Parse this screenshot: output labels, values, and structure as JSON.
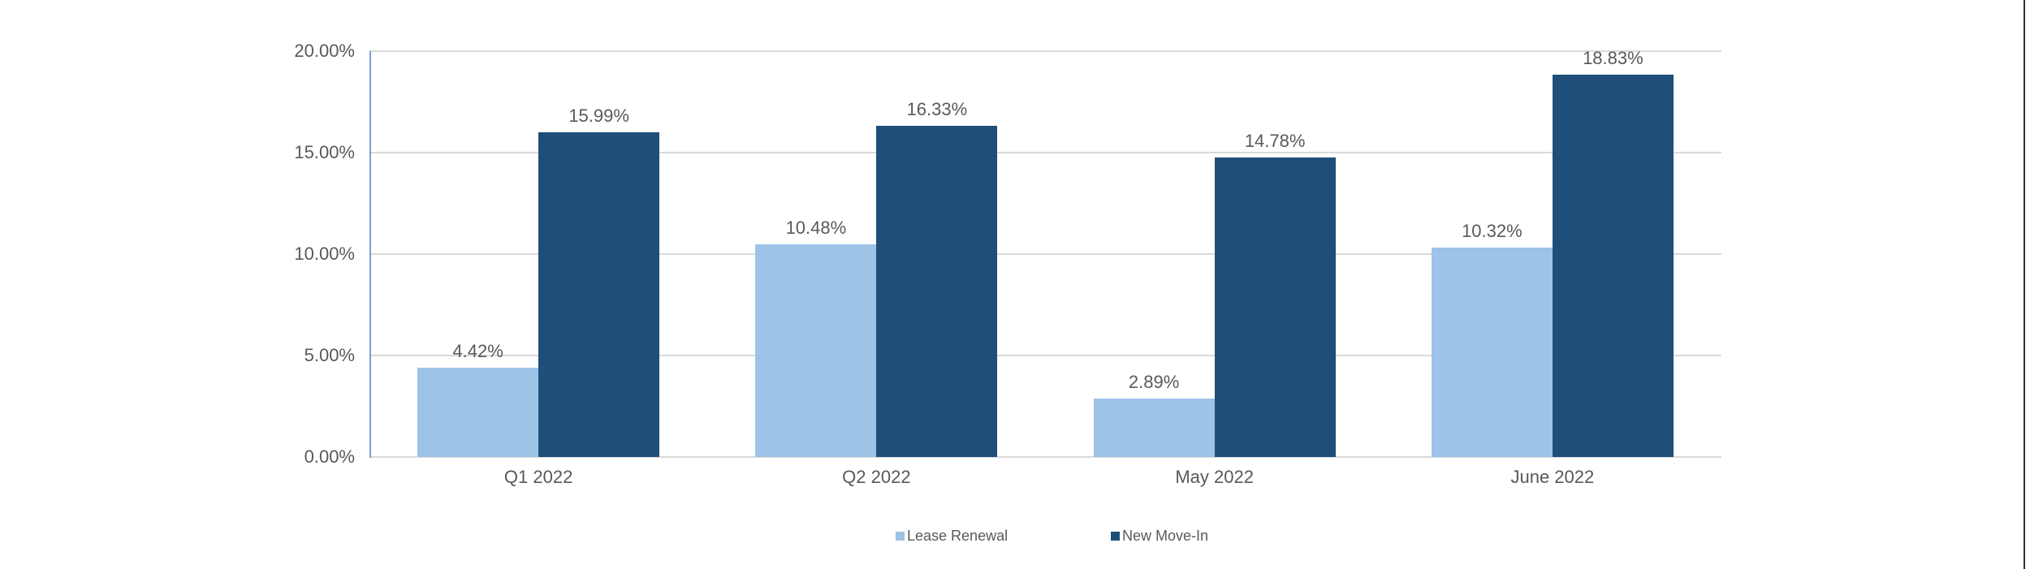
{
  "chart_data": {
    "type": "bar",
    "title": "",
    "categories": [
      "Q1 2022",
      "Q2 2022",
      "May 2022",
      "June 2022"
    ],
    "series": [
      {
        "name": "Lease Renewal",
        "color": "#9DC3E6",
        "values": [
          4.42,
          10.48,
          2.89,
          10.32
        ],
        "value_labels": [
          "4.42%",
          "10.48%",
          "2.89%",
          "10.32%"
        ]
      },
      {
        "name": "New Move-In",
        "color": "#1F4E79",
        "values": [
          15.99,
          16.33,
          14.78,
          18.83
        ],
        "value_labels": [
          "15.99%",
          "16.33%",
          "14.78%",
          "18.83%"
        ]
      }
    ],
    "ylim": [
      0,
      20
    ],
    "ytick_values": [
      0,
      5,
      10,
      15,
      20
    ],
    "ytick_labels": [
      "0.00%",
      "5.00%",
      "10.00%",
      "15.00%",
      "20.00%"
    ],
    "grid": "horizontal",
    "legend_position": "bottom",
    "legend_entries": [
      "Lease Renewal",
      "New Move-In"
    ],
    "colors": {
      "gridline": "#D9D9D9",
      "y_axis_line": "#7F9DD3",
      "text": "#595959",
      "background": "#FFFFFF",
      "right_edge_line": "#2F2F2F"
    }
  }
}
